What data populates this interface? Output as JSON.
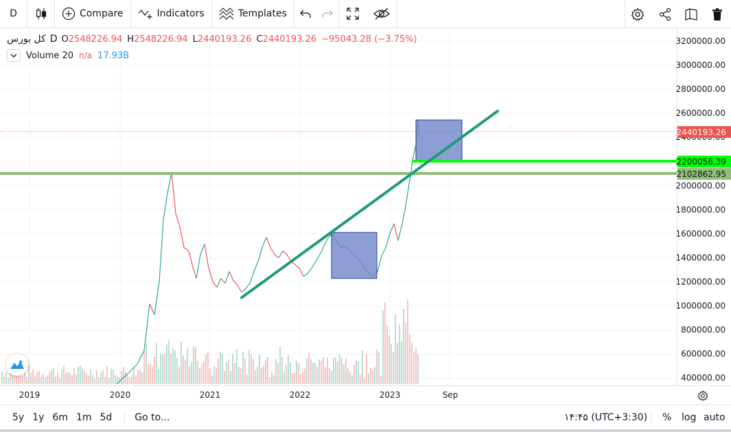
{
  "toolbar": {
    "symbol_label": "D",
    "compare_label": "Compare",
    "indicators_label": "Indicators",
    "templates_label": "Templates"
  },
  "legend": {
    "symbol": "کل بورس",
    "interval": "D",
    "open_key": "O",
    "open": "2548226.94",
    "high_key": "H",
    "high": "2548226.94",
    "low_key": "L",
    "low": "2440193.26",
    "close_key": "C",
    "close": "2440193.26",
    "change": "−95043.28 (−3.75%)",
    "volume_label": "Volume 20",
    "volume_na": "n/a",
    "volume_value": "17.93B"
  },
  "price_axis": {
    "ticks": [
      "3200000.00",
      "3000000.00",
      "2800000.00",
      "2600000.00",
      "2400000.00",
      "2200000.00",
      "2000000.00",
      "1800000.00",
      "1600000.00",
      "1400000.00",
      "1200000.00",
      "1000000.00",
      "800000.00",
      "600000.00",
      "400000.00"
    ],
    "tags": [
      {
        "text": "2440193.26",
        "bg": "#ef5350",
        "color": "#ffffff"
      },
      {
        "text": "2200056.39",
        "bg": "#00ff00",
        "color": "#131722"
      },
      {
        "text": "2102862.95",
        "bg": "#8fbc76",
        "color": "#131722"
      }
    ]
  },
  "time_axis": {
    "labels": [
      "2019",
      "2020",
      "2021",
      "2022",
      "2023",
      "Sep"
    ]
  },
  "bottom_bar": {
    "ranges": [
      "5y",
      "1y",
      "6m",
      "1m",
      "5d"
    ],
    "goto_label": "Go to...",
    "clock": "۱۴:۴۵ (UTC+3:30)",
    "percent_label": "%",
    "log_label": "log",
    "auto_label": "auto"
  },
  "colors": {
    "up": "#26a69a",
    "down": "#ef5350",
    "trendline": "#1f9a7a",
    "support_bright": "#00ff00",
    "support_muted": "#8fbc76",
    "rect_fill": "#6f86c9",
    "rect_border": "#2a3e8f"
  }
}
